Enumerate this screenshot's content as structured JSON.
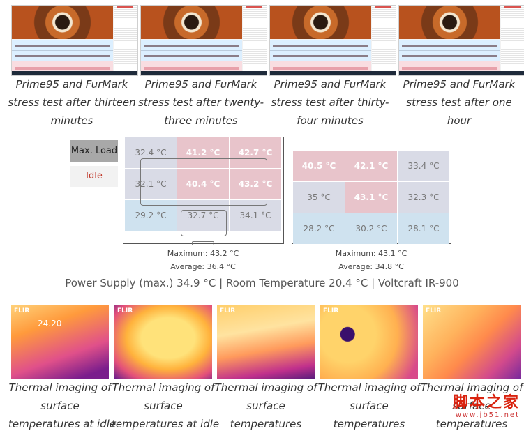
{
  "screenshots": [
    {
      "caption": "Prime95 and FurMark stress test after thirteen minutes"
    },
    {
      "caption": "Prime95 and FurMark stress test after twenty-three minutes"
    },
    {
      "caption": "Prime95 and FurMark stress test after thirty-four minutes"
    },
    {
      "caption": "Prime95 and FurMark stress test after one hour"
    }
  ],
  "caption_lines": [
    [
      "Prime95 and FurMark",
      "stress test after thirteen",
      "minutes"
    ],
    [
      "Prime95 and FurMark",
      "stress test after twenty-",
      "three minutes"
    ],
    [
      "Prime95 and FurMark",
      "stress test after thirty-",
      "four minutes"
    ],
    [
      "Prime95 and FurMark",
      "stress test after one hour",
      ""
    ]
  ],
  "legend": {
    "max_load": "Max. Load",
    "idle": "Idle",
    "idle_color": "#c0392b"
  },
  "heatmaps": [
    {
      "cells": [
        "32.4 °C",
        "41.2 °C",
        "42.7 °C",
        "32.1 °C",
        "40.4 °C",
        "43.2 °C",
        "29.2 °C",
        "32.7 °C",
        "34.1 °C"
      ],
      "levels": [
        "grey",
        "red",
        "red",
        "grey",
        "red",
        "red",
        "blue",
        "grey",
        "grey"
      ],
      "maximum": "Maximum: 43.2 °C",
      "average": "Average: 36.4 °C"
    },
    {
      "cells": [
        "40.5 °C",
        "42.1 °C",
        "33.4 °C",
        "35 °C",
        "43.1 °C",
        "32.3 °C",
        "28.2 °C",
        "30.2 °C",
        "28.1 °C"
      ],
      "levels": [
        "red",
        "red",
        "grey",
        "grey",
        "red",
        "grey",
        "blue",
        "blue",
        "blue"
      ],
      "maximum": "Maximum: 43.1 °C",
      "average": "Average: 34.8 °C"
    }
  ],
  "power_line": "Power Supply (max.)  34.9 °C | Room Temperature 20.4 °C | Voltcraft IR-900",
  "thermal_images": [
    {
      "flir": "FLIR",
      "temp": "24.20",
      "caption_lines": [
        "Thermal imaging of",
        "surface",
        "temperatures at idle"
      ]
    },
    {
      "flir": "FLIR",
      "temp": "",
      "caption_lines": [
        "Thermal imaging of",
        "surface",
        "temperatures at idle"
      ]
    },
    {
      "flir": "FLIR",
      "temp": "",
      "caption_lines": [
        "Thermal imaging of",
        "surface",
        "temperatures"
      ]
    },
    {
      "flir": "FLIR",
      "temp": "",
      "caption_lines": [
        "Thermal imaging of",
        "surface",
        "temperatures"
      ]
    },
    {
      "flir": "FLIR",
      "temp": "",
      "caption_lines": [
        "Thermal imaging of",
        "surface",
        "temperatures"
      ]
    }
  ],
  "watermark": {
    "text": "脚本之家",
    "url": "www.jb51.net"
  },
  "colors": {
    "hot": "#e8c4cb",
    "warm": "#d9dbe6",
    "cool": "#cfe2ef"
  }
}
